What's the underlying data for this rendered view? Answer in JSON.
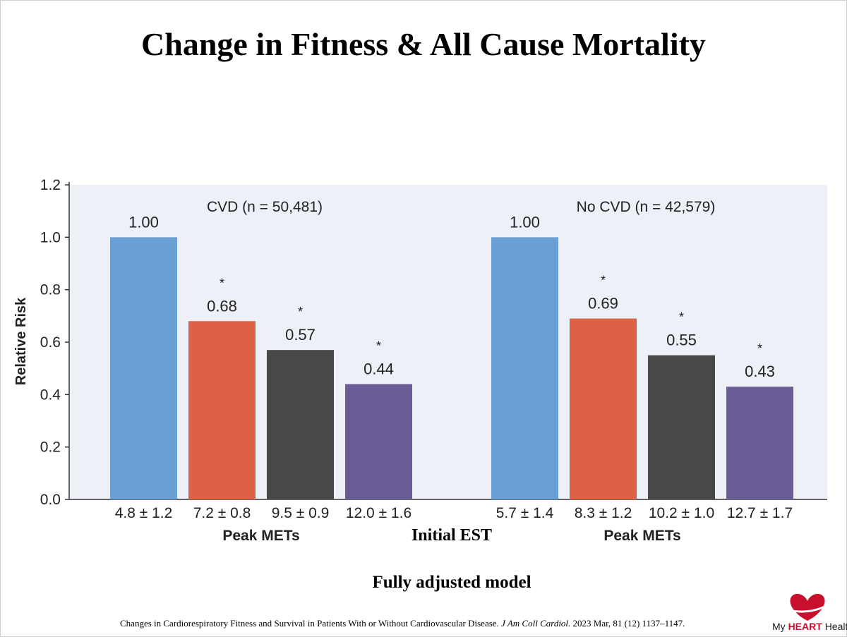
{
  "slide": {
    "title": "Change in Fitness & All Cause Mortality",
    "x_group_title": "Initial EST",
    "model_label": "Fully adjusted model",
    "citation": {
      "text": "Changes in Cardiorespiratory Fitness and Survival in Patients With or Without Cardiovascular Disease.",
      "journal": "J Am Coll Cardiol.",
      "details": "2023 Mar, 81 (12) 1137–1147."
    },
    "brand": {
      "prefix": "My",
      "highlight": "HEART",
      "suffix": "Health",
      "color": "#c8102e"
    }
  },
  "chart_data": {
    "type": "bar",
    "ylabel": "Relative Risk",
    "ylim": [
      0,
      1.2
    ],
    "yticks": [
      "0.0",
      "0.2",
      "0.4",
      "0.6",
      "0.8",
      "1.0",
      "1.2"
    ],
    "plot_background": "#eef0f8",
    "xlabel": "Peak METs",
    "significance_marker": "*",
    "groups": [
      {
        "label": "CVD (n = 50,481)",
        "categories": [
          "4.8 ± 1.2",
          "7.2 ± 0.8",
          "9.5 ± 0.9",
          "12.0 ± 1.6"
        ],
        "values": [
          1.0,
          0.68,
          0.57,
          0.44
        ],
        "value_labels": [
          "1.00",
          "0.68",
          "0.57",
          "0.44"
        ],
        "significant": [
          false,
          true,
          true,
          true
        ],
        "colors": [
          "#6a9fd4",
          "#dc6146",
          "#484848",
          "#6a5c95"
        ]
      },
      {
        "label": "No CVD (n = 42,579)",
        "categories": [
          "5.7 ± 1.4",
          "8.3 ± 1.2",
          "10.2 ± 1.0",
          "12.7 ± 1.7"
        ],
        "values": [
          1.0,
          0.69,
          0.55,
          0.43
        ],
        "value_labels": [
          "1.00",
          "0.69",
          "0.55",
          "0.43"
        ],
        "significant": [
          false,
          true,
          true,
          true
        ],
        "colors": [
          "#6a9fd4",
          "#dc6146",
          "#484848",
          "#6a5c95"
        ]
      }
    ]
  }
}
